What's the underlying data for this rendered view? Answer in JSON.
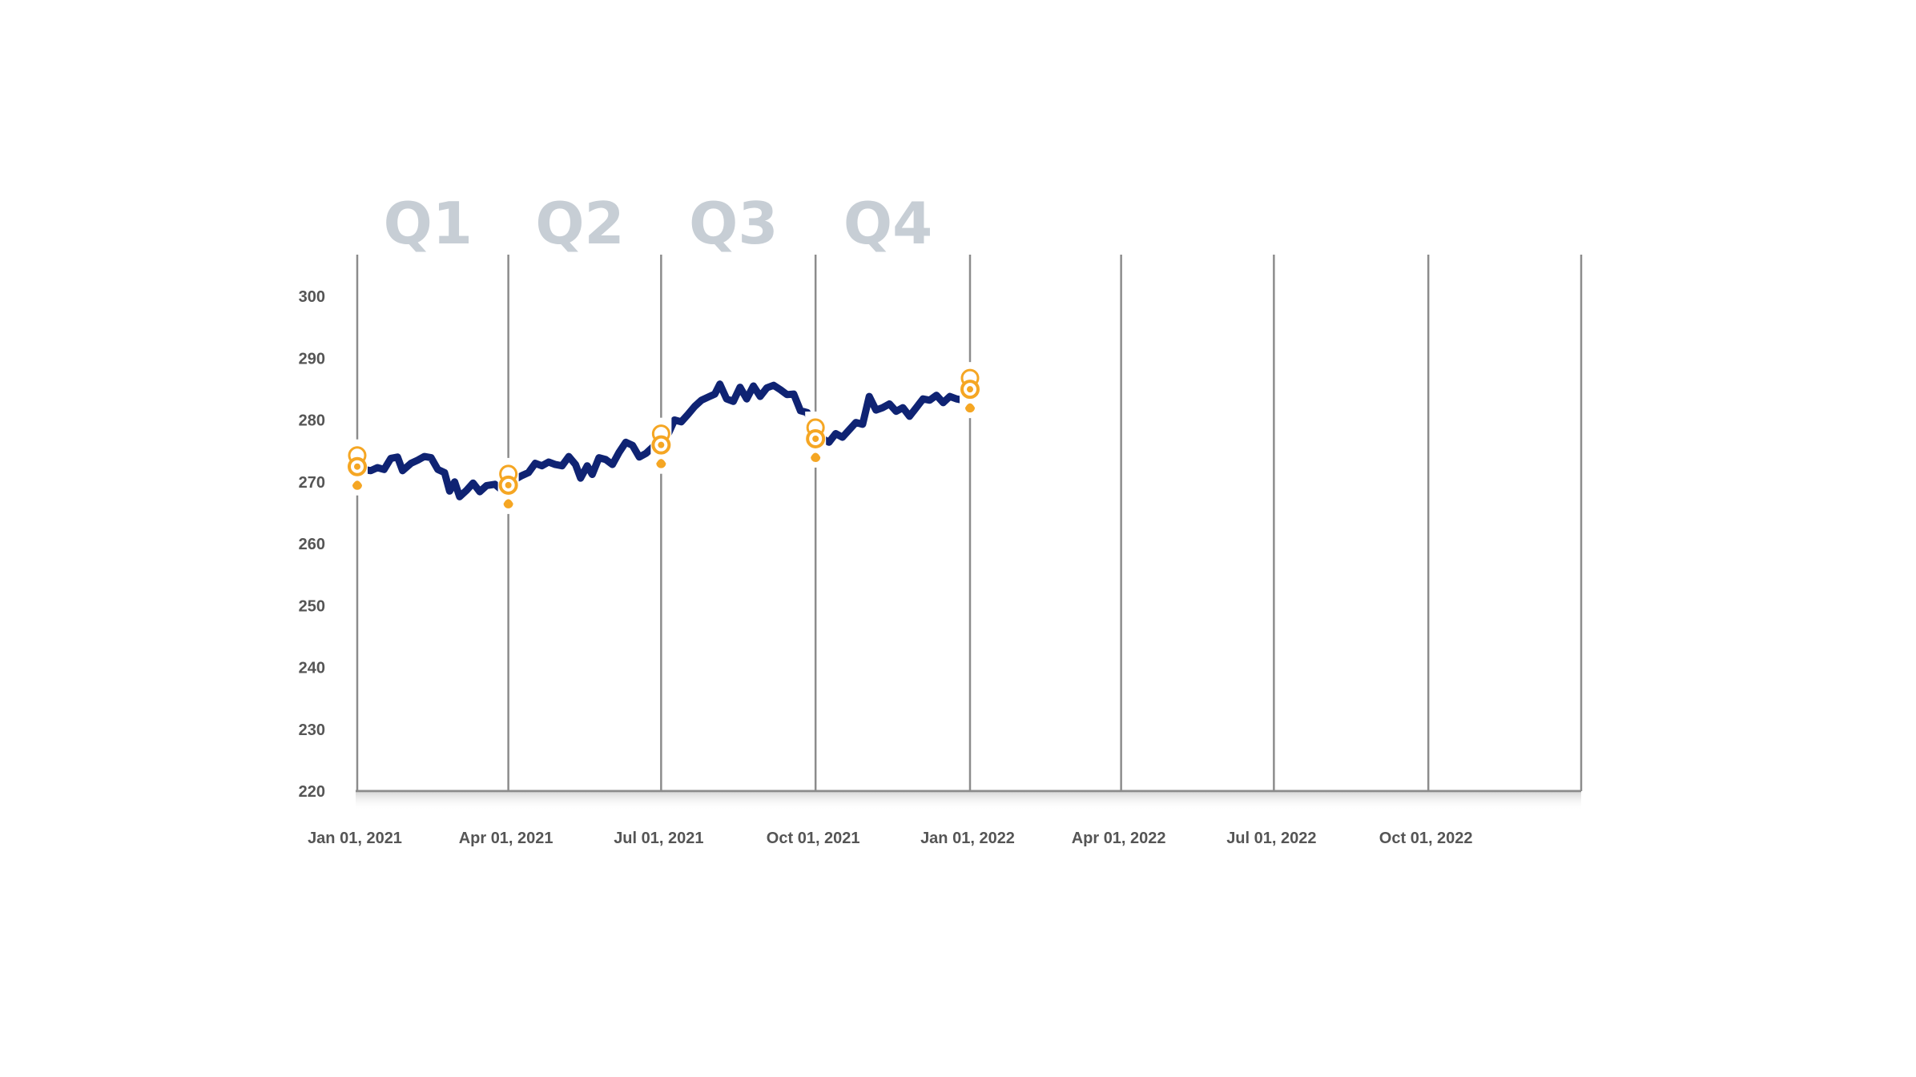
{
  "chart_data": {
    "type": "line",
    "title": "",
    "xlabel": "",
    "ylabel": "",
    "ylim": [
      220,
      300
    ],
    "xlim": [
      "2021-01-01",
      "2022-12-31"
    ],
    "y_ticks": [
      "220",
      "230",
      "240",
      "250",
      "260",
      "270",
      "280",
      "290",
      "300"
    ],
    "x_ticks": [
      {
        "date": "2021-01-01",
        "label": "Jan 01, 2021"
      },
      {
        "date": "2021-04-01",
        "label": "Apr 01, 2021"
      },
      {
        "date": "2021-07-01",
        "label": "Jul 01, 2021"
      },
      {
        "date": "2021-10-01",
        "label": "Oct 01, 2021"
      },
      {
        "date": "2022-01-01",
        "label": "Jan 01, 2022"
      },
      {
        "date": "2022-04-01",
        "label": "Apr 01, 2022"
      },
      {
        "date": "2022-07-01",
        "label": "Jul 01, 2022"
      },
      {
        "date": "2022-10-01",
        "label": "Oct 01, 2022"
      }
    ],
    "quarter_labels": [
      {
        "label": "Q1",
        "start": "2021-01-01",
        "end": "2021-04-01"
      },
      {
        "label": "Q2",
        "start": "2021-04-01",
        "end": "2021-07-01"
      },
      {
        "label": "Q3",
        "start": "2021-07-01",
        "end": "2021-10-01"
      },
      {
        "label": "Q4",
        "start": "2021-10-01",
        "end": "2022-01-01"
      }
    ],
    "series": [
      {
        "color": "#0f2373",
        "points": [
          [
            "2021-01-01",
            272.5
          ],
          [
            "2021-01-05",
            272.0
          ],
          [
            "2021-01-09",
            271.8
          ],
          [
            "2021-01-13",
            272.3
          ],
          [
            "2021-01-17",
            272.0
          ],
          [
            "2021-01-21",
            273.8
          ],
          [
            "2021-01-25",
            274.0
          ],
          [
            "2021-01-28",
            271.8
          ],
          [
            "2021-02-02",
            273.0
          ],
          [
            "2021-02-06",
            273.5
          ],
          [
            "2021-02-10",
            274.1
          ],
          [
            "2021-02-14",
            273.9
          ],
          [
            "2021-02-18",
            272.0
          ],
          [
            "2021-02-22",
            271.5
          ],
          [
            "2021-02-25",
            268.5
          ],
          [
            "2021-02-28",
            270.0
          ],
          [
            "2021-03-03",
            267.6
          ],
          [
            "2021-03-07",
            268.6
          ],
          [
            "2021-03-11",
            269.8
          ],
          [
            "2021-03-15",
            268.4
          ],
          [
            "2021-03-19",
            269.4
          ],
          [
            "2021-03-24",
            269.6
          ],
          [
            "2021-03-28",
            268.7
          ],
          [
            "2021-04-01",
            269.8
          ],
          [
            "2021-04-05",
            270.4
          ],
          [
            "2021-04-09",
            271.0
          ],
          [
            "2021-04-13",
            271.5
          ],
          [
            "2021-04-17",
            273.0
          ],
          [
            "2021-04-21",
            272.6
          ],
          [
            "2021-04-25",
            273.2
          ],
          [
            "2021-04-29",
            272.8
          ],
          [
            "2021-05-03",
            272.6
          ],
          [
            "2021-05-07",
            274.1
          ],
          [
            "2021-05-11",
            272.8
          ],
          [
            "2021-05-14",
            270.6
          ],
          [
            "2021-05-18",
            272.6
          ],
          [
            "2021-05-21",
            271.2
          ],
          [
            "2021-05-25",
            273.9
          ],
          [
            "2021-05-29",
            273.6
          ],
          [
            "2021-06-02",
            272.8
          ],
          [
            "2021-06-06",
            274.8
          ],
          [
            "2021-06-10",
            276.4
          ],
          [
            "2021-06-14",
            275.9
          ],
          [
            "2021-06-18",
            274.0
          ],
          [
            "2021-06-22",
            274.6
          ],
          [
            "2021-06-26",
            275.6
          ],
          [
            "2021-07-01",
            276.0
          ],
          [
            "2021-07-05",
            277.6
          ],
          [
            "2021-07-09",
            280.0
          ],
          [
            "2021-07-13",
            279.7
          ],
          [
            "2021-07-17",
            280.9
          ],
          [
            "2021-07-21",
            282.2
          ],
          [
            "2021-07-25",
            283.2
          ],
          [
            "2021-07-29",
            283.7
          ],
          [
            "2021-08-02",
            284.2
          ],
          [
            "2021-08-05",
            285.8
          ],
          [
            "2021-08-09",
            283.4
          ],
          [
            "2021-08-13",
            283.0
          ],
          [
            "2021-08-17",
            285.3
          ],
          [
            "2021-08-21",
            283.4
          ],
          [
            "2021-08-25",
            285.5
          ],
          [
            "2021-08-29",
            283.8
          ],
          [
            "2021-09-02",
            285.2
          ],
          [
            "2021-09-06",
            285.6
          ],
          [
            "2021-09-10",
            284.9
          ],
          [
            "2021-09-14",
            284.1
          ],
          [
            "2021-09-18",
            284.2
          ],
          [
            "2021-09-22",
            281.5
          ],
          [
            "2021-09-26",
            281.2
          ],
          [
            "2021-10-01",
            278.0
          ],
          [
            "2021-10-05",
            277.0
          ],
          [
            "2021-10-09",
            276.4
          ],
          [
            "2021-10-13",
            277.8
          ],
          [
            "2021-10-17",
            277.2
          ],
          [
            "2021-10-21",
            278.4
          ],
          [
            "2021-10-25",
            279.6
          ],
          [
            "2021-10-29",
            279.3
          ],
          [
            "2021-11-02",
            283.8
          ],
          [
            "2021-11-06",
            281.6
          ],
          [
            "2021-11-10",
            282.0
          ],
          [
            "2021-11-14",
            282.6
          ],
          [
            "2021-11-18",
            281.4
          ],
          [
            "2021-11-22",
            282.0
          ],
          [
            "2021-11-26",
            280.6
          ],
          [
            "2021-11-30",
            282.0
          ],
          [
            "2021-12-04",
            283.4
          ],
          [
            "2021-12-08",
            283.2
          ],
          [
            "2021-12-12",
            284.0
          ],
          [
            "2021-12-16",
            282.8
          ],
          [
            "2021-12-20",
            283.8
          ],
          [
            "2021-12-24",
            283.4
          ],
          [
            "2021-12-28",
            283.2
          ]
        ]
      }
    ],
    "markers": [
      {
        "date": "2021-01-01",
        "value": 273.5,
        "color": "#f5a623"
      },
      {
        "date": "2021-04-01",
        "value": 270.5,
        "color": "#f5a623"
      },
      {
        "date": "2021-07-01",
        "value": 277.0,
        "color": "#f5a623"
      },
      {
        "date": "2021-10-01",
        "value": 278.0,
        "color": "#f5a623"
      },
      {
        "date": "2022-01-01",
        "value": 286.0,
        "color": "#f5a623"
      }
    ],
    "grid": {
      "vertical": true,
      "horizontal": false
    },
    "legend": "none"
  }
}
